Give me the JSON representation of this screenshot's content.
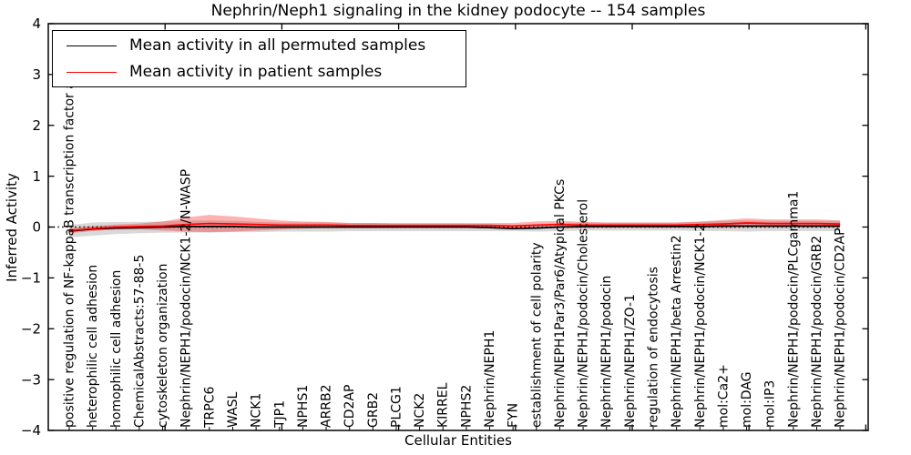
{
  "figure_title": "Nephrin/Neph1 signaling in the kidney podocyte -- 154 samples",
  "chart_data": {
    "type": "line",
    "title": "Nephrin/Neph1 signaling in the kidney podocyte -- 154 samples",
    "xlabel": "Cellular Entities",
    "ylabel": "Inferred Activity",
    "ylim": [
      -4,
      4
    ],
    "yticks": [
      4,
      3,
      2,
      1,
      0,
      -1,
      -2,
      -3,
      -4
    ],
    "grid": false,
    "zero_line": 0,
    "legend_position": "upper left",
    "x_tick_label_rotation": 90,
    "categories": [
      "positive regulation of NF-kappaB transcription factor activity",
      "heterophilic cell adhesion",
      "homophilic cell adhesion",
      "ChemicalAbstracts:57-88-5",
      "cytoskeleton organization",
      "Nephrin/NEPH1/podocin/NCK1-2/N-WASP",
      "TRPC6",
      "WASL",
      "NCK1",
      "TJP1",
      "NPHS1",
      "ARRB2",
      "CD2AP",
      "GRB2",
      "PLCG1",
      "NCK2",
      "KIRREL",
      "NPHS2",
      "Nephrin/NEPH1",
      "FYN",
      "establishment of cell polarity",
      "Nephrin/NEPH1Par3/Par6/Atypical PKCs",
      "Nephrin/NEPH1/podocin/Cholesterol",
      "Nephrin/NEPH1/podocin",
      "Nephrin/NEPH1/ZO-1",
      "regulation of endocytosis",
      "Nephrin/NEPH1/beta Arrestin2",
      "Nephrin/NEPH1/podocin/NCK1-2",
      "mol:Ca2+",
      "mol:DAG",
      "mol:IP3",
      "Nephrin/NEPH1/podocin/PLCgamma1",
      "Nephrin/NEPH1/podocin/GRB2",
      "Nephrin/NEPH1/podocin/CD2AP"
    ],
    "series": [
      {
        "name": "Mean activity in all permuted samples",
        "color": "#000000",
        "band_color": "rgba(0,0,0,0.15)",
        "values": [
          -0.08,
          -0.04,
          -0.02,
          -0.01,
          0,
          0.01,
          0.01,
          0.01,
          0,
          0,
          0,
          0,
          0,
          0,
          0,
          0,
          0,
          0,
          -0.01,
          -0.03,
          -0.02,
          0,
          0.01,
          0.01,
          0.01,
          0.01,
          0.01,
          0.01,
          0.02,
          0.02,
          0.02,
          0.02,
          0.02,
          0.02
        ],
        "band_halfwidth": [
          0.12,
          0.13,
          0.12,
          0.11,
          0.11,
          0.12,
          0.12,
          0.11,
          0.1,
          0.09,
          0.09,
          0.09,
          0.08,
          0.08,
          0.08,
          0.08,
          0.08,
          0.08,
          0.07,
          0.05,
          0.07,
          0.08,
          0.08,
          0.08,
          0.08,
          0.08,
          0.08,
          0.09,
          0.1,
          0.11,
          0.1,
          0.1,
          0.1,
          0.1
        ]
      },
      {
        "name": "Mean activity in patient samples",
        "color": "#ff0000",
        "band_color": "rgba(255,0,0,0.30)",
        "values": [
          -0.07,
          -0.03,
          0,
          0.01,
          0.02,
          0.05,
          0.07,
          0.06,
          0.05,
          0.04,
          0.04,
          0.04,
          0.03,
          0.03,
          0.03,
          0.03,
          0.03,
          0.03,
          0.03,
          0.02,
          0.04,
          0.05,
          0.04,
          0.04,
          0.04,
          0.04,
          0.04,
          0.05,
          0.06,
          0.08,
          0.07,
          0.07,
          0.07,
          0.06
        ],
        "band_halfwidth": [
          0.05,
          0.05,
          0.05,
          0.06,
          0.09,
          0.14,
          0.17,
          0.15,
          0.12,
          0.09,
          0.07,
          0.06,
          0.05,
          0.05,
          0.04,
          0.04,
          0.04,
          0.04,
          0.05,
          0.06,
          0.07,
          0.07,
          0.06,
          0.05,
          0.05,
          0.05,
          0.05,
          0.06,
          0.08,
          0.09,
          0.08,
          0.08,
          0.08,
          0.07
        ]
      }
    ]
  }
}
